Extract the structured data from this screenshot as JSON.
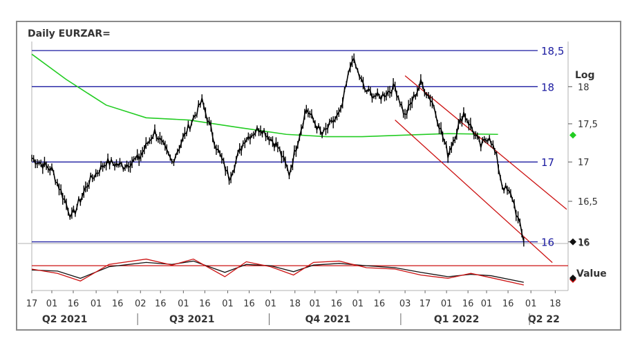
{
  "title": "Daily EURZAR=",
  "chart_data": {
    "type": "line",
    "scale": "log",
    "main_axis_label": "Log",
    "ylim": [
      15.98,
      18.55
    ],
    "y_ticks": [
      {
        "label": "18",
        "value": 18
      },
      {
        "label": "17,5",
        "value": 17.5
      },
      {
        "label": "17",
        "value": 17
      },
      {
        "label": "16,5",
        "value": 16.5
      },
      {
        "label": "16",
        "value": 16
      }
    ],
    "horizontal_levels": [
      {
        "label": "18,5",
        "value": 18.5
      },
      {
        "label": "18",
        "value": 18
      },
      {
        "label": "17",
        "value": 17
      },
      {
        "label": "16",
        "value": 16
      }
    ],
    "x_range": [
      "2021-04-17",
      "2022-04-27"
    ],
    "price_series": {
      "x": [
        "2021-04-17",
        "2021-05-01",
        "2021-05-15",
        "2021-05-27",
        "2021-06-08",
        "2021-06-20",
        "2021-07-01",
        "2021-07-12",
        "2021-07-24",
        "2021-08-02",
        "2021-08-14",
        "2021-08-24",
        "2021-09-02",
        "2021-09-13",
        "2021-09-24",
        "2021-10-06",
        "2021-10-14",
        "2021-10-26",
        "2021-11-06",
        "2021-11-19",
        "2021-11-27",
        "2021-12-06",
        "2021-12-16",
        "2021-12-27",
        "2022-01-03",
        "2022-01-14",
        "2022-01-22",
        "2022-02-02",
        "2022-02-13",
        "2022-02-25",
        "2022-03-03",
        "2022-03-08",
        "2022-03-12",
        "2022-03-19",
        "2022-03-27"
      ],
      "y": [
        17.05,
        16.9,
        16.3,
        16.75,
        17.0,
        16.95,
        17.05,
        17.4,
        17.0,
        17.35,
        17.8,
        17.2,
        16.8,
        17.3,
        17.45,
        17.2,
        16.85,
        17.7,
        17.35,
        17.65,
        18.4,
        17.95,
        17.85,
        18.0,
        17.6,
        18.05,
        17.8,
        17.1,
        17.65,
        17.2,
        17.35,
        17.05,
        16.7,
        16.55,
        16.0
      ]
    },
    "moving_average": {
      "color": "#22cc22",
      "x": [
        "2021-04-17",
        "2021-05-11",
        "2021-06-08",
        "2021-07-06",
        "2021-08-05",
        "2021-09-09",
        "2021-10-12",
        "2021-11-09",
        "2021-12-04",
        "2022-01-03",
        "2022-02-02",
        "2022-03-09"
      ],
      "y": [
        18.45,
        18.1,
        17.75,
        17.58,
        17.55,
        17.45,
        17.36,
        17.33,
        17.33,
        17.35,
        17.37,
        17.36
      ]
    },
    "channel": {
      "color": "#cc1111",
      "upper": {
        "x": [
          "2022-01-03",
          "2022-04-26"
        ],
        "y": [
          18.15,
          16.4
        ]
      },
      "lower": {
        "x": [
          "2021-12-27",
          "2022-04-16"
        ],
        "y": [
          17.55,
          15.75
        ]
      }
    },
    "oscillator": {
      "axis_label": "Value",
      "series": [
        {
          "color": "#111111",
          "x": [
            "2021-04-17",
            "2021-05-05",
            "2021-05-21",
            "2021-06-10",
            "2021-07-06",
            "2021-07-24",
            "2021-08-08",
            "2021-08-30",
            "2021-09-14",
            "2021-10-01",
            "2021-10-17",
            "2021-10-31",
            "2021-11-18",
            "2021-12-07",
            "2021-12-27",
            "2022-01-14",
            "2022-02-02",
            "2022-02-18",
            "2022-03-04",
            "2022-03-27"
          ],
          "y": [
            0.45,
            0.42,
            0.2,
            0.55,
            0.68,
            0.62,
            0.72,
            0.38,
            0.62,
            0.58,
            0.4,
            0.6,
            0.65,
            0.58,
            0.52,
            0.38,
            0.25,
            0.32,
            0.28,
            0.08
          ]
        },
        {
          "color": "#cc1111",
          "x": [
            "2021-04-17",
            "2021-05-05",
            "2021-05-21",
            "2021-06-10",
            "2021-07-06",
            "2021-07-24",
            "2021-08-08",
            "2021-08-30",
            "2021-09-14",
            "2021-10-01",
            "2021-10-17",
            "2021-10-31",
            "2021-11-18",
            "2021-12-07",
            "2021-12-27",
            "2022-01-14",
            "2022-02-02",
            "2022-02-18",
            "2022-03-04",
            "2022-03-27"
          ],
          "y": [
            0.48,
            0.35,
            0.12,
            0.62,
            0.78,
            0.6,
            0.78,
            0.25,
            0.7,
            0.55,
            0.3,
            0.68,
            0.72,
            0.52,
            0.48,
            0.3,
            0.2,
            0.35,
            0.22,
            0.0
          ]
        }
      ],
      "reference_level": 0.58
    },
    "x_tick_labels": [
      {
        "label": "17",
        "date": "2021-04-17"
      },
      {
        "label": "01",
        "date": "2021-05-01"
      },
      {
        "label": "16",
        "date": "2021-05-16"
      },
      {
        "label": "01",
        "date": "2021-06-01"
      },
      {
        "label": "16",
        "date": "2021-06-16"
      },
      {
        "label": "02",
        "date": "2021-07-02"
      },
      {
        "label": "16",
        "date": "2021-07-16"
      },
      {
        "label": "01",
        "date": "2021-08-01"
      },
      {
        "label": "16",
        "date": "2021-08-16"
      },
      {
        "label": "01",
        "date": "2021-09-01"
      },
      {
        "label": "16",
        "date": "2021-09-16"
      },
      {
        "label": "01",
        "date": "2021-10-01"
      },
      {
        "label": "18",
        "date": "2021-10-18"
      },
      {
        "label": "01",
        "date": "2021-11-01"
      },
      {
        "label": "16",
        "date": "2021-11-16"
      },
      {
        "label": "01",
        "date": "2021-12-01"
      },
      {
        "label": "16",
        "date": "2021-12-16"
      },
      {
        "label": "03",
        "date": "2022-01-03"
      },
      {
        "label": "17",
        "date": "2022-01-17"
      },
      {
        "label": "01",
        "date": "2022-02-01"
      },
      {
        "label": "16",
        "date": "2022-02-16"
      },
      {
        "label": "01",
        "date": "2022-03-01"
      },
      {
        "label": "16",
        "date": "2022-03-16"
      },
      {
        "label": "01",
        "date": "2022-04-01"
      },
      {
        "label": "18",
        "date": "2022-04-18"
      }
    ],
    "quarter_labels": [
      {
        "label": "Q2 2021",
        "date": "2021-05-10"
      },
      {
        "label": "Q3 2021",
        "date": "2021-08-07"
      },
      {
        "label": "Q4 2021",
        "date": "2021-11-10"
      },
      {
        "label": "Q1 2022",
        "date": "2022-02-08"
      },
      {
        "label": "Q2 22",
        "date": "2022-04-10"
      }
    ],
    "quarter_dividers": [
      "2021-06-30",
      "2021-09-30",
      "2021-12-31",
      "2022-03-31"
    ],
    "marker_colors": {
      "ma": "#22cc22",
      "price": "#111111",
      "oscillator": "#cc1111"
    }
  }
}
